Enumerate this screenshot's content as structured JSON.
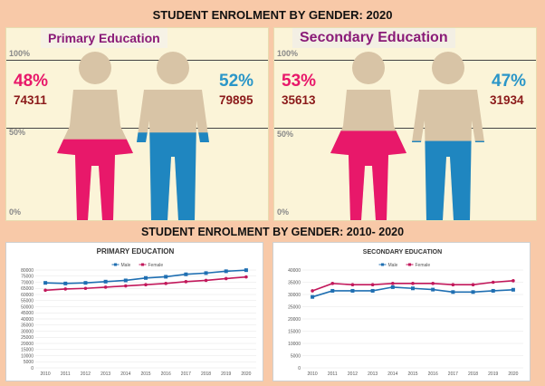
{
  "header": {
    "title_2020": "STUDENT ENROLMENT BY GENDER: 2020",
    "title_trend": "STUDENT ENROLMENT BY GENDER: 2010- 2020"
  },
  "levels": [
    "100%",
    "50%",
    "0%"
  ],
  "colors": {
    "female": "#e8186a",
    "male": "#1f86c0",
    "skin": "#d8c4a6",
    "female_line": "#c2185b",
    "male_line": "#1f6fb2"
  },
  "primary_2020": {
    "title": "Primary Education",
    "female_pct": "48%",
    "female_count": "74311",
    "male_pct": "52%",
    "male_count": "79895",
    "female_fill": 0.48,
    "male_fill": 0.52
  },
  "secondary_2020": {
    "title": "Secondary Education",
    "female_pct": "53%",
    "female_count": "35613",
    "male_pct": "47%",
    "male_count": "31934",
    "female_fill": 0.53,
    "male_fill": 0.47
  },
  "chart_data": [
    {
      "type": "line",
      "title": "PRIMARY EDUCATION",
      "categories": [
        "2010",
        "2011",
        "2012",
        "2013",
        "2014",
        "2015",
        "2016",
        "2017",
        "2018",
        "2019",
        "2020"
      ],
      "series": [
        {
          "name": "Male",
          "values": [
            69500,
            69000,
            69500,
            70500,
            71500,
            73500,
            74500,
            76500,
            77500,
            79000,
            79895
          ]
        },
        {
          "name": "Female",
          "values": [
            63500,
            64500,
            65000,
            66000,
            67000,
            68000,
            69000,
            70500,
            71500,
            73000,
            74311
          ]
        }
      ],
      "yticks": [
        0,
        5000,
        10000,
        15000,
        20000,
        25000,
        30000,
        35000,
        40000,
        45000,
        50000,
        55000,
        60000,
        65000,
        70000,
        75000,
        80000
      ],
      "ylim": [
        0,
        80000
      ]
    },
    {
      "type": "line",
      "title": "SECONDARY EDUCATION",
      "categories": [
        "2010",
        "2011",
        "2012",
        "2013",
        "2014",
        "2015",
        "2016",
        "2017",
        "2018",
        "2019",
        "2020"
      ],
      "series": [
        {
          "name": "Male",
          "values": [
            29000,
            31500,
            31500,
            31500,
            33000,
            32500,
            32000,
            31000,
            31000,
            31500,
            31934
          ]
        },
        {
          "name": "Female",
          "values": [
            31500,
            34500,
            34000,
            34000,
            34500,
            34500,
            34500,
            34000,
            34000,
            35000,
            35613
          ]
        }
      ],
      "yticks": [
        0,
        5000,
        10000,
        15000,
        20000,
        25000,
        30000,
        35000,
        40000
      ],
      "ylim": [
        0,
        40000
      ]
    }
  ]
}
